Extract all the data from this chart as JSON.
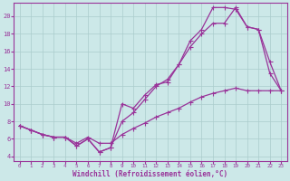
{
  "xlabel": "Windchill (Refroidissement éolien,°C)",
  "bg_color": "#cce8e8",
  "grid_color": "#aacccc",
  "line_color": "#993399",
  "xlim": [
    -0.5,
    23.5
  ],
  "ylim": [
    3.5,
    21.5
  ],
  "yticks": [
    4,
    6,
    8,
    10,
    12,
    14,
    16,
    18,
    20
  ],
  "xticks": [
    0,
    1,
    2,
    3,
    4,
    5,
    6,
    7,
    8,
    9,
    10,
    11,
    12,
    13,
    14,
    15,
    16,
    17,
    18,
    19,
    20,
    21,
    22,
    23
  ],
  "line1_x": [
    0,
    1,
    2,
    3,
    4,
    5,
    6,
    7,
    8,
    9,
    10,
    11,
    12,
    13,
    14,
    15,
    16,
    17,
    18,
    19,
    20,
    21,
    22,
    23
  ],
  "line1_y": [
    7.5,
    7.0,
    6.5,
    6.2,
    6.2,
    5.2,
    6.0,
    4.5,
    5.0,
    10.0,
    9.5,
    11.0,
    12.2,
    12.5,
    14.5,
    17.2,
    18.5,
    21.0,
    21.0,
    20.8,
    18.8,
    18.5,
    13.5,
    11.5
  ],
  "line2_x": [
    0,
    1,
    2,
    3,
    4,
    5,
    6,
    7,
    8,
    9,
    10,
    11,
    12,
    13,
    14,
    15,
    16,
    17,
    18,
    19,
    20,
    21,
    22,
    23
  ],
  "line2_y": [
    7.5,
    7.0,
    6.5,
    6.2,
    6.2,
    5.2,
    6.0,
    4.5,
    5.0,
    8.0,
    9.0,
    10.5,
    12.0,
    12.8,
    14.5,
    16.5,
    18.0,
    19.2,
    19.2,
    21.0,
    18.8,
    18.5,
    14.8,
    11.5
  ],
  "line3_x": [
    0,
    1,
    2,
    3,
    4,
    5,
    6,
    7,
    8,
    9,
    10,
    11,
    12,
    13,
    14,
    15,
    16,
    17,
    18,
    19,
    20,
    21,
    22,
    23
  ],
  "line3_y": [
    7.5,
    7.0,
    6.5,
    6.2,
    6.2,
    5.5,
    6.2,
    5.5,
    5.5,
    6.5,
    7.2,
    7.8,
    8.5,
    9.0,
    9.5,
    10.2,
    10.8,
    11.2,
    11.5,
    11.8,
    11.5,
    11.5,
    11.5,
    11.5
  ]
}
